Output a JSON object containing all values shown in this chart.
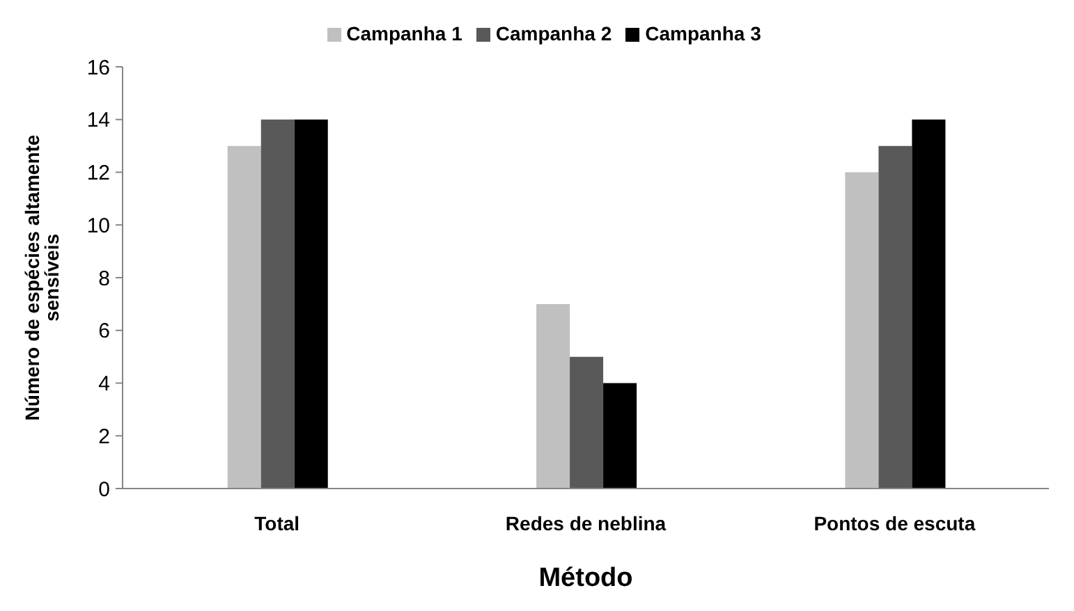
{
  "chart_data": {
    "type": "bar",
    "xlabel": "Método",
    "ylabel": "Número de espécies altamente sensíveis",
    "categories": [
      "Total",
      "Redes de neblina",
      "Pontos de escuta"
    ],
    "series": [
      {
        "name": "Campanha 1",
        "color": "#c0c0c0",
        "values": [
          13,
          7,
          12
        ]
      },
      {
        "name": "Campanha 2",
        "color": "#595959",
        "values": [
          14,
          5,
          13
        ]
      },
      {
        "name": "Campanha 3",
        "color": "#000000",
        "values": [
          14,
          4,
          14
        ]
      }
    ],
    "ylim": [
      0,
      16
    ],
    "yticks": [
      0,
      2,
      4,
      6,
      8,
      10,
      12,
      14,
      16
    ],
    "grid": false,
    "legend": "top"
  }
}
